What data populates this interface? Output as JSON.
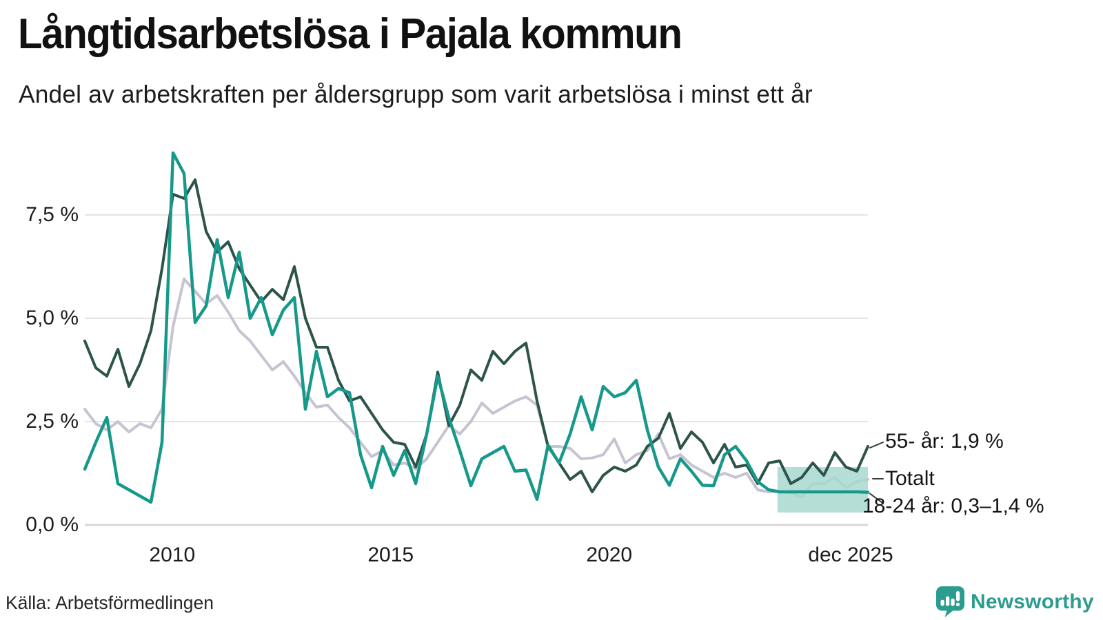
{
  "header": {
    "title": "Långtidsarbetslösa i Pajala kommun",
    "subtitle": "Andel av arbetskraften per åldersgrupp som varit arbetslösa i minst ett år"
  },
  "footer": {
    "source": "Källa: Arbetsförmedlingen",
    "brand": "Newsworthy"
  },
  "colors": {
    "series_55": "#2d5449",
    "series_total": "#c7c3d1",
    "series_1824": "#16998a",
    "uncertainty_band": "#a7d8cf",
    "gridline": "#e4e4e4",
    "axis_line": "#d7d7d7",
    "connector": "#3a3a3a",
    "brand_teal": "#2c9c8e"
  },
  "chart_data": {
    "type": "line",
    "title": "Långtidsarbetslösa i Pajala kommun",
    "subtitle": "Andel av arbetskraften per åldersgrupp som varit arbetslösa i minst ett år",
    "unit": "%",
    "x_start": 2008.0,
    "x_end": 2025.92,
    "ylim": [
      0,
      9.3
    ],
    "grid": true,
    "y_ticks": [
      {
        "value": 0.0,
        "label": "0,0 %"
      },
      {
        "value": 2.5,
        "label": "2,5 %"
      },
      {
        "value": 5.0,
        "label": "5,0 %"
      },
      {
        "value": 7.5,
        "label": "7,5 %"
      }
    ],
    "x_ticks": [
      {
        "value": 2010.0,
        "label": "2010"
      },
      {
        "value": 2015.0,
        "label": "2015"
      },
      {
        "value": 2020.0,
        "label": "2020"
      },
      {
        "value": 2025.92,
        "label": "dec 2025"
      }
    ],
    "series": [
      {
        "name": "55- år",
        "color": "#2d5449",
        "width": 4,
        "end_label": "55- år: 1,9 %",
        "end_value": 1.9,
        "values": [
          4.45,
          3.8,
          3.6,
          4.25,
          3.35,
          3.9,
          4.7,
          6.2,
          8.0,
          7.9,
          8.35,
          7.1,
          6.6,
          6.85,
          6.2,
          5.8,
          5.4,
          5.7,
          5.45,
          6.25,
          5.0,
          4.3,
          4.3,
          3.5,
          3.0,
          3.1,
          2.7,
          2.3,
          2.0,
          1.95,
          1.4,
          2.2,
          3.7,
          2.4,
          2.9,
          3.75,
          3.5,
          4.2,
          3.9,
          4.2,
          4.4,
          3.0,
          1.9,
          1.5,
          1.1,
          1.3,
          0.8,
          1.2,
          1.4,
          1.3,
          1.45,
          1.9,
          2.1,
          2.7,
          1.85,
          2.25,
          2.0,
          1.5,
          1.95,
          1.4,
          1.45,
          1.0,
          1.5,
          1.55,
          1.0,
          1.15,
          1.5,
          1.2,
          1.75,
          1.4,
          1.3,
          1.9
        ]
      },
      {
        "name": "Totalt",
        "color": "#c7c3d1",
        "width": 4,
        "end_label": "Totalt",
        "end_value": 1.1,
        "values": [
          2.8,
          2.45,
          2.3,
          2.5,
          2.25,
          2.45,
          2.35,
          2.8,
          4.8,
          5.95,
          5.65,
          5.35,
          5.55,
          5.15,
          4.7,
          4.45,
          4.1,
          3.75,
          3.95,
          3.6,
          3.2,
          2.85,
          2.9,
          2.6,
          2.35,
          2.0,
          1.65,
          1.8,
          1.45,
          1.5,
          1.35,
          1.6,
          2.0,
          2.4,
          2.2,
          2.5,
          2.95,
          2.7,
          2.85,
          3.0,
          3.1,
          2.9,
          1.9,
          1.9,
          1.85,
          1.6,
          1.62,
          1.7,
          2.08,
          1.5,
          1.7,
          1.8,
          2.2,
          1.6,
          1.7,
          1.45,
          1.3,
          1.15,
          1.25,
          1.15,
          1.25,
          0.85,
          0.8,
          0.82,
          0.78,
          0.68,
          1.0,
          1.0,
          1.15,
          0.9,
          1.05,
          1.1
        ]
      },
      {
        "name": "18-24 år",
        "color": "#16998a",
        "width": 4.5,
        "end_label": "18-24 år: 0,3–1,4 %",
        "end_value": 0.79,
        "values": [
          1.35,
          2.0,
          2.6,
          1.0,
          0.85,
          0.7,
          0.55,
          2.0,
          9.0,
          8.5,
          4.9,
          5.3,
          6.9,
          5.5,
          6.6,
          5.0,
          5.5,
          4.6,
          5.2,
          5.5,
          2.8,
          4.2,
          3.1,
          3.3,
          3.2,
          1.7,
          0.9,
          1.9,
          1.2,
          1.8,
          1.0,
          2.2,
          3.6,
          2.6,
          1.8,
          0.95,
          1.6,
          1.75,
          1.9,
          1.3,
          1.33,
          0.62,
          1.93,
          1.5,
          2.2,
          3.1,
          2.3,
          3.35,
          3.1,
          3.2,
          3.5,
          2.3,
          1.4,
          0.96,
          1.6,
          1.3,
          0.96,
          0.95,
          1.7,
          1.9,
          1.55,
          1.05,
          0.85,
          0.8,
          0.8,
          0.8,
          0.8,
          0.8,
          0.8,
          0.8,
          0.8,
          0.79
        ]
      }
    ],
    "uncertainty_band": {
      "series": "18-24 år",
      "start_x": 2023.85,
      "low": 0.3,
      "high": 1.4,
      "color": "#a7d8cf",
      "label_range": "0,3–1,4 %"
    },
    "legend_position": "end-of-line-labels"
  }
}
